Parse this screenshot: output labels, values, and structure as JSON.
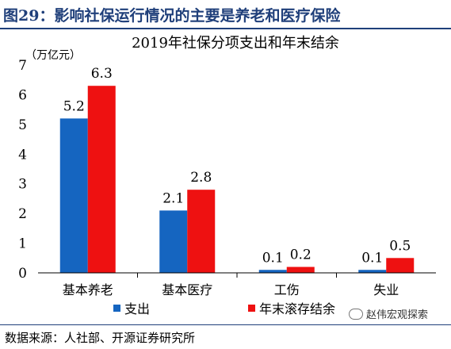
{
  "figure": {
    "title": "图29：影响社保运行情况的主要是养老和医疗保险",
    "source": "数据来源：人社部、开源证券研究所",
    "watermark": "赵伟宏观探索"
  },
  "chart_data": {
    "type": "bar",
    "title": "2019年社保分项支出和年末结余",
    "ylabel": "（万亿元）",
    "xlabel": "",
    "categories": [
      "基本养老",
      "基本医疗",
      "工伤",
      "失业"
    ],
    "ylim": [
      0,
      7
    ],
    "yticks": [
      0,
      1,
      2,
      3,
      4,
      5,
      6,
      7
    ],
    "grid": false,
    "legend": "bottom",
    "series": [
      {
        "name": "支出",
        "values": [
          5.2,
          2.1,
          0.1,
          0.1
        ],
        "color": "#1565c0"
      },
      {
        "name": "年末滚存结余",
        "values": [
          6.3,
          2.8,
          0.2,
          0.5
        ],
        "color": "#ee1111"
      }
    ]
  }
}
